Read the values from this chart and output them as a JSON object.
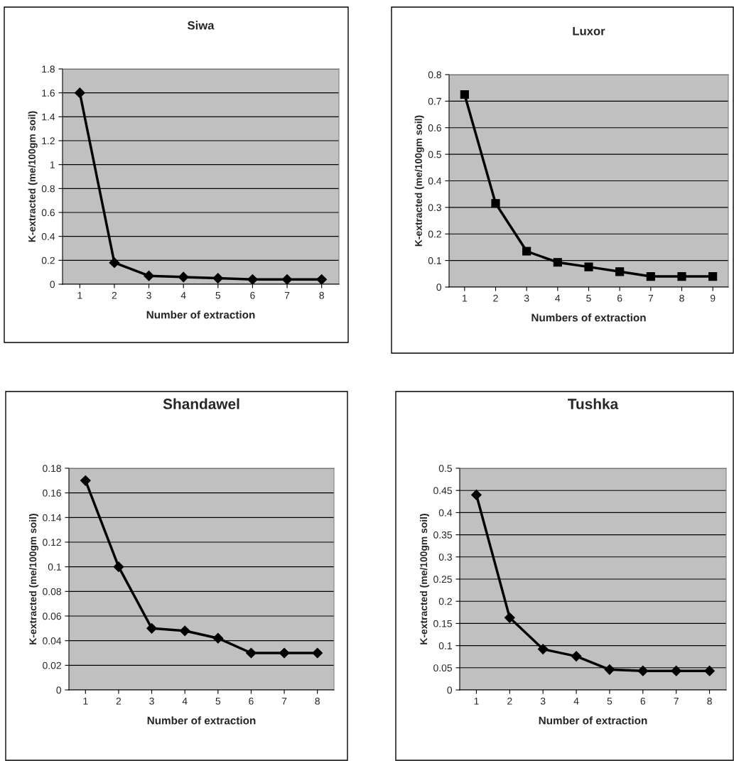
{
  "chart_data": [
    {
      "type": "line",
      "title": "Siwa",
      "xlabel": "Number of extraction",
      "ylabel": "K-extracted (me/100gm soil)",
      "categories": [
        "1",
        "2",
        "3",
        "4",
        "5",
        "6",
        "7",
        "8"
      ],
      "series": [
        {
          "color": "#000000",
          "values": [
            1.6,
            0.18,
            0.07,
            0.06,
            0.05,
            0.04,
            0.04,
            0.04
          ]
        }
      ],
      "ylim": [
        0,
        1.8
      ],
      "yticks": [
        0,
        0.2,
        0.4,
        0.6,
        0.8,
        1,
        1.2,
        1.4,
        1.6,
        1.8
      ],
      "grid": "y",
      "marker": "diamond",
      "line_style": "solid"
    },
    {
      "type": "line",
      "title": "Luxor",
      "xlabel": "Numbers of extraction",
      "ylabel": "K-extracted (me/100gm soil)",
      "categories": [
        "1",
        "2",
        "3",
        "4",
        "5",
        "6",
        "7",
        "8",
        "9"
      ],
      "series": [
        {
          "color": "#000000",
          "values": [
            0.725,
            0.315,
            0.135,
            0.093,
            0.076,
            0.058,
            0.04,
            0.04,
            0.04
          ]
        }
      ],
      "ylim": [
        0,
        0.8
      ],
      "yticks": [
        0,
        0.1,
        0.2,
        0.3,
        0.4,
        0.5,
        0.6,
        0.7,
        0.8
      ],
      "grid": "y",
      "marker": "square",
      "line_style": "solid"
    },
    {
      "type": "line",
      "title": "Shandawel",
      "xlabel": "Number of extraction",
      "ylabel": "K-extracted (me/100gm soil)",
      "categories": [
        "1",
        "2",
        "3",
        "4",
        "5",
        "6",
        "7",
        "8"
      ],
      "series": [
        {
          "color": "#000000",
          "values": [
            0.17,
            0.1,
            0.05,
            0.048,
            0.042,
            0.03,
            0.03,
            0.03
          ]
        }
      ],
      "ylim": [
        0,
        0.18
      ],
      "yticks": [
        0,
        0.02,
        0.04,
        0.06,
        0.08,
        0.1,
        0.12,
        0.14,
        0.16,
        0.18
      ],
      "grid": "y",
      "marker": "diamond",
      "line_style": "solid"
    },
    {
      "type": "line",
      "title": "Tushka",
      "xlabel": "Number of extraction",
      "ylabel": "K-extracted (me/100gm soil)",
      "categories": [
        "1",
        "2",
        "3",
        "4",
        "5",
        "6",
        "7",
        "8"
      ],
      "series": [
        {
          "color": "#000000",
          "values": [
            0.44,
            0.163,
            0.092,
            0.076,
            0.046,
            0.043,
            0.043,
            0.043
          ]
        }
      ],
      "ylim": [
        0,
        0.5
      ],
      "yticks": [
        0,
        0.05,
        0.1,
        0.15,
        0.2,
        0.25,
        0.3,
        0.35,
        0.4,
        0.45,
        0.5
      ],
      "grid": "y",
      "marker": "diamond",
      "line_style": "solid"
    }
  ]
}
